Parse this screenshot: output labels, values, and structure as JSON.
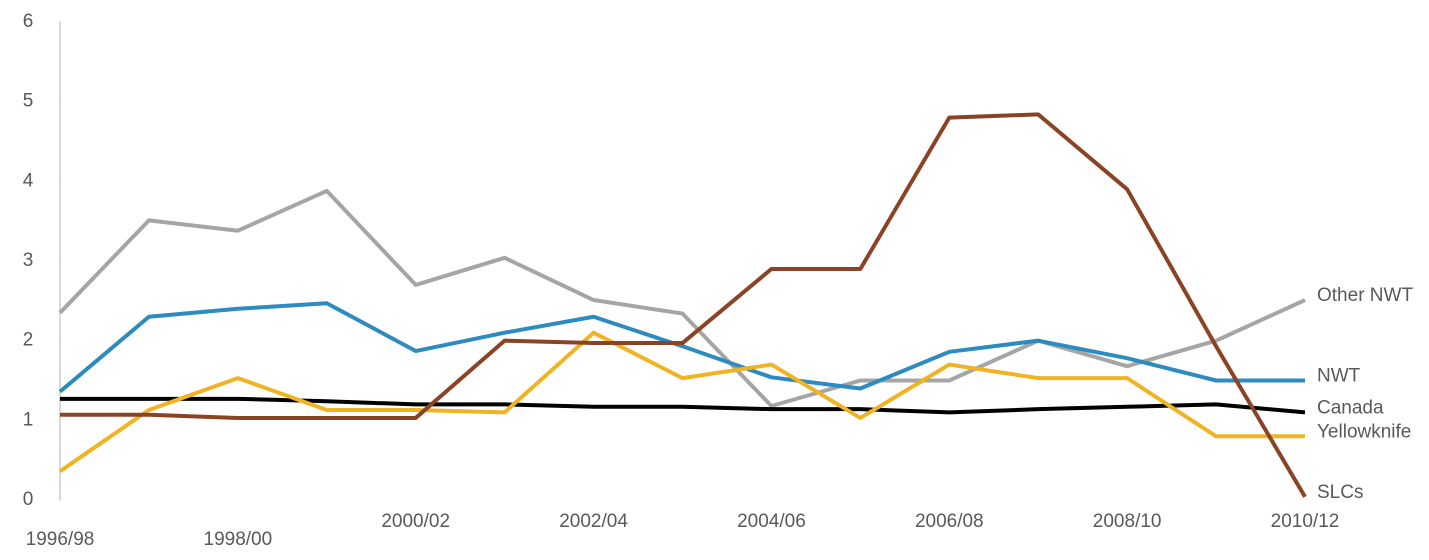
{
  "chart_data": {
    "type": "line",
    "categories": [
      "1996/98",
      null,
      "1998/00",
      null,
      "2000/02",
      null,
      "2002/04",
      null,
      "2004/06",
      null,
      "2006/08",
      null,
      "2008/10",
      null,
      "2010/12"
    ],
    "series": [
      {
        "name": "Other NWT",
        "color": "#a5a5a5",
        "values": [
          2.35,
          3.51,
          3.38,
          3.88,
          2.7,
          3.04,
          2.51,
          2.34,
          1.18,
          1.5,
          1.5,
          2.0,
          1.68,
          2.0,
          2.51
        ]
      },
      {
        "name": "NWT",
        "color": "#2e8bc0",
        "values": [
          1.36,
          2.3,
          2.4,
          2.47,
          1.87,
          2.1,
          2.3,
          1.93,
          1.54,
          1.4,
          1.86,
          2.0,
          1.78,
          1.5,
          1.5
        ]
      },
      {
        "name": "Canada",
        "color": "#000000",
        "values": [
          1.27,
          1.27,
          1.27,
          1.24,
          1.2,
          1.2,
          1.17,
          1.17,
          1.14,
          1.14,
          1.1,
          1.14,
          1.17,
          1.2,
          1.1
        ]
      },
      {
        "name": "Yellowknife",
        "color": "#f0b323",
        "values": [
          0.36,
          1.13,
          1.53,
          1.13,
          1.13,
          1.1,
          2.1,
          1.53,
          1.7,
          1.03,
          1.7,
          1.53,
          1.53,
          0.8,
          0.8
        ]
      },
      {
        "name": "SLCs",
        "color": "#8b4326",
        "values": [
          1.07,
          1.07,
          1.03,
          1.03,
          1.03,
          2.0,
          1.97,
          1.97,
          2.9,
          2.9,
          4.8,
          4.84,
          3.9,
          1.93,
          0.04
        ]
      }
    ],
    "ylim": [
      0,
      6
    ],
    "yticks": [
      0,
      1,
      2,
      3,
      4,
      5,
      6
    ],
    "grid": false
  }
}
